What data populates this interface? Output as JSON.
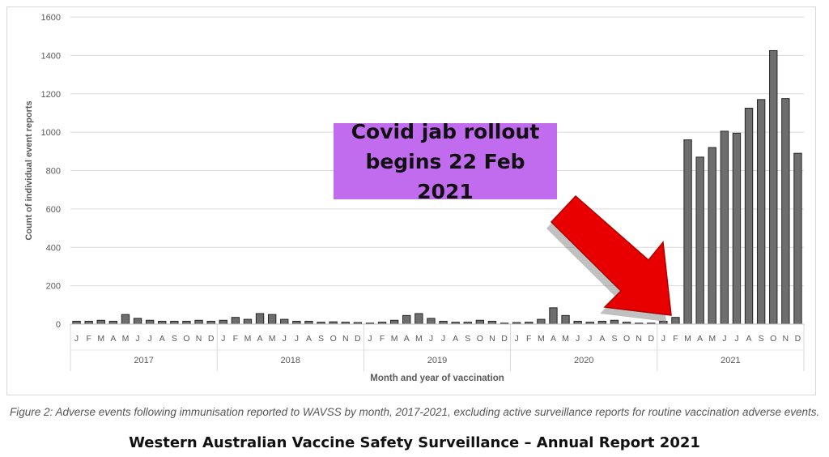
{
  "chart_data": {
    "type": "bar",
    "ylabel": "Count of individual event reports",
    "xlabel": "Month and year of vaccination",
    "ylim": [
      0,
      1600
    ],
    "yticks": [
      0,
      200,
      400,
      600,
      800,
      1000,
      1200,
      1400,
      1600
    ],
    "grid": true,
    "years": [
      "2017",
      "2018",
      "2019",
      "2020",
      "2021"
    ],
    "month_labels": [
      "J",
      "F",
      "M",
      "A",
      "M",
      "J",
      "J",
      "A",
      "S",
      "O",
      "N",
      "D"
    ],
    "values": [
      15,
      15,
      20,
      15,
      50,
      30,
      20,
      15,
      15,
      15,
      20,
      15,
      20,
      35,
      25,
      55,
      50,
      25,
      15,
      15,
      10,
      12,
      10,
      8,
      5,
      10,
      20,
      45,
      55,
      30,
      15,
      10,
      10,
      20,
      15,
      5,
      8,
      10,
      25,
      85,
      45,
      15,
      10,
      15,
      20,
      10,
      5,
      5,
      15,
      35,
      960,
      870,
      920,
      1005,
      995,
      1125,
      1170,
      1425,
      1175,
      890
    ],
    "bar_color": "#6e6e6e"
  },
  "annotation": {
    "line1": "Covid jab rollout",
    "line2": "begins 22 Feb 2021",
    "box_color": "#c16cef",
    "arrow_color": "#e80000"
  },
  "caption": "Figure 2: Adverse events following immunisation reported to WAVSS by month, 2017-2021, excluding active surveillance reports for routine vaccination adverse events.",
  "report_title": "Western Australian Vaccine Safety Surveillance – Annual Report 2021"
}
